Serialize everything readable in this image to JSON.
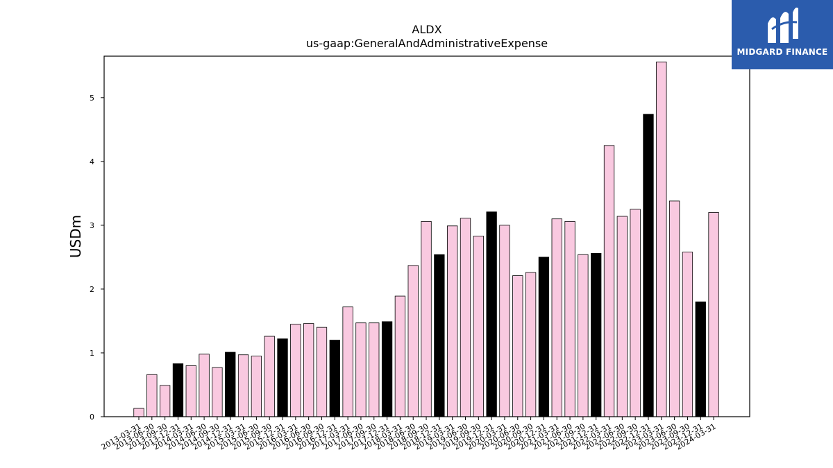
{
  "chart_data": {
    "type": "bar",
    "title": "ALDX",
    "subtitle": "us-gaap:GeneralAndAdministrativeExpense",
    "ylabel": "USDm",
    "xlabel": "",
    "ylim": [
      0,
      5.65
    ],
    "yticks": [
      0,
      1,
      2,
      3,
      4,
      5
    ],
    "grid": false,
    "colors": {
      "quarter": "#f9c9e0",
      "fiscal_q4": "#000000",
      "edge": "#000000"
    },
    "categories": [
      "2013-03-31",
      "2013-06-30",
      "2013-09-30",
      "2013-12-31",
      "2014-03-31",
      "2014-06-30",
      "2014-09-30",
      "2014-12-31",
      "2015-03-31",
      "2015-06-30",
      "2015-09-30",
      "2015-12-31",
      "2016-03-31",
      "2016-06-30",
      "2016-09-30",
      "2016-12-31",
      "2017-03-31",
      "2017-06-30",
      "2017-09-30",
      "2017-12-31",
      "2018-03-31",
      "2018-06-30",
      "2018-09-30",
      "2018-12-31",
      "2019-03-31",
      "2019-06-30",
      "2019-09-30",
      "2019-12-31",
      "2020-03-31",
      "2020-06-30",
      "2020-09-30",
      "2020-12-31",
      "2021-03-31",
      "2021-06-30",
      "2021-09-30",
      "2021-12-31",
      "2022-03-31",
      "2022-06-30",
      "2022-09-30",
      "2022-12-31",
      "2023-03-31",
      "2023-06-30",
      "2023-09-30",
      "2023-12-31",
      "2024-03-31"
    ],
    "values": [
      0.13,
      0.66,
      0.49,
      0.83,
      0.8,
      0.98,
      0.77,
      1.01,
      0.97,
      0.95,
      1.26,
      1.22,
      1.45,
      1.46,
      1.4,
      1.2,
      1.72,
      1.47,
      1.47,
      1.49,
      1.89,
      2.37,
      3.06,
      2.54,
      2.99,
      3.11,
      2.83,
      3.21,
      3.0,
      2.21,
      2.26,
      2.5,
      3.1,
      3.06,
      2.54,
      2.56,
      4.25,
      3.14,
      3.25,
      4.74,
      5.56,
      3.38,
      2.58,
      1.8,
      3.2
    ],
    "highlighted": [
      false,
      false,
      false,
      true,
      false,
      false,
      false,
      true,
      false,
      false,
      false,
      true,
      false,
      false,
      false,
      true,
      false,
      false,
      false,
      true,
      false,
      false,
      false,
      true,
      false,
      false,
      false,
      true,
      false,
      false,
      false,
      true,
      false,
      false,
      false,
      true,
      false,
      false,
      false,
      true,
      false,
      false,
      false,
      true,
      false
    ]
  },
  "logo": {
    "text": "MIDGARD FINANCE",
    "icon": "midgard-logo-icon"
  }
}
